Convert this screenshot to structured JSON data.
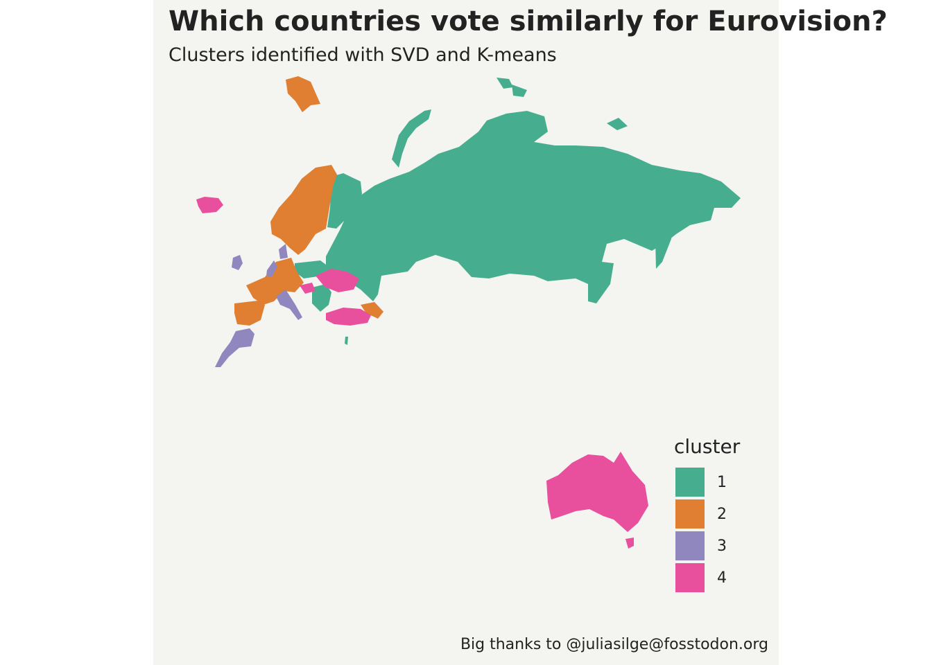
{
  "title": "Which countries vote similarly for Eurovision?",
  "subtitle": "Clusters identified with SVD and K-means",
  "caption": "Big thanks to @juliasilge@fosstodon.org",
  "colors": {
    "panel_bg": "#f4f4f1",
    "cluster_1": "#46ae8e",
    "cluster_2": "#e07f31",
    "cluster_3": "#8f87bd",
    "cluster_4": "#e8509e"
  },
  "legend": {
    "title": "cluster",
    "items": [
      {
        "label": "1",
        "color": "#46ae8e"
      },
      {
        "label": "2",
        "color": "#e07f31"
      },
      {
        "label": "3",
        "color": "#8f87bd"
      },
      {
        "label": "4",
        "color": "#e8509e"
      }
    ]
  },
  "regions": [
    {
      "name": "Russia",
      "cluster": "1"
    },
    {
      "name": "Norway",
      "cluster": "2"
    },
    {
      "name": "Sweden",
      "cluster": "2"
    },
    {
      "name": "Finland",
      "cluster": "1"
    },
    {
      "name": "Iceland",
      "cluster": "4"
    },
    {
      "name": "Ireland",
      "cluster": "3"
    },
    {
      "name": "Spain",
      "cluster": "2"
    },
    {
      "name": "Portugal",
      "cluster": "3"
    },
    {
      "name": "France",
      "cluster": "2"
    },
    {
      "name": "Italy",
      "cluster": "3"
    },
    {
      "name": "Ukraine",
      "cluster": "4"
    },
    {
      "name": "Turkey",
      "cluster": "4"
    },
    {
      "name": "Australia",
      "cluster": "4"
    },
    {
      "name": "Svalbard",
      "cluster": "2"
    }
  ]
}
